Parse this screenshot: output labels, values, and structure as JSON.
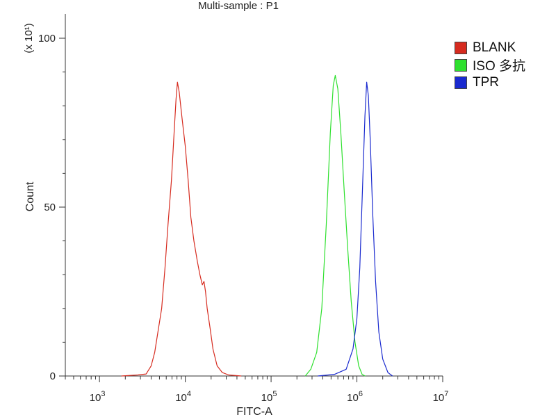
{
  "chart_data": {
    "type": "line",
    "title": "Multi-sample : P1",
    "xlabel": "FITC-A",
    "ylabel": "Count",
    "y_multiplier": "(x 10¹)",
    "x_scale": "log",
    "xlim": [
      400,
      10000000
    ],
    "ylim": [
      0,
      100
    ],
    "x_tick_labels": [
      {
        "value": 1000,
        "base": "10",
        "exp": "3"
      },
      {
        "value": 10000,
        "base": "10",
        "exp": "4"
      },
      {
        "value": 100000,
        "base": "10",
        "exp": "5"
      },
      {
        "value": 1000000,
        "base": "10",
        "exp": "6"
      },
      {
        "value": 10000000,
        "base": "10",
        "exp": "7"
      }
    ],
    "y_ticks": [
      0,
      50,
      100
    ],
    "legend_position": "right",
    "series": [
      {
        "name": "BLANK",
        "color": "#d62b1f",
        "points": [
          [
            1800,
            0
          ],
          [
            2800,
            0.3
          ],
          [
            3500,
            0.6
          ],
          [
            4000,
            3
          ],
          [
            4400,
            7
          ],
          [
            4800,
            13
          ],
          [
            5300,
            20
          ],
          [
            5800,
            32
          ],
          [
            6300,
            45
          ],
          [
            6900,
            58
          ],
          [
            7400,
            72
          ],
          [
            7800,
            82
          ],
          [
            8100,
            87
          ],
          [
            8500,
            84
          ],
          [
            9200,
            76
          ],
          [
            10000,
            68
          ],
          [
            10800,
            58
          ],
          [
            11600,
            47
          ],
          [
            12600,
            40
          ],
          [
            13800,
            34
          ],
          [
            14800,
            30
          ],
          [
            15800,
            27
          ],
          [
            16500,
            28
          ],
          [
            17200,
            25
          ],
          [
            18000,
            20
          ],
          [
            19500,
            14
          ],
          [
            21000,
            8
          ],
          [
            23500,
            3
          ],
          [
            27000,
            1
          ],
          [
            32000,
            0.3
          ],
          [
            45000,
            0
          ]
        ]
      },
      {
        "name": "ISO 多抗",
        "color": "#2ee02e",
        "points": [
          [
            250000,
            0
          ],
          [
            290000,
            2
          ],
          [
            340000,
            7
          ],
          [
            390000,
            20
          ],
          [
            440000,
            45
          ],
          [
            490000,
            72
          ],
          [
            530000,
            86
          ],
          [
            560000,
            89
          ],
          [
            600000,
            85
          ],
          [
            650000,
            72
          ],
          [
            710000,
            55
          ],
          [
            780000,
            38
          ],
          [
            860000,
            22
          ],
          [
            950000,
            10
          ],
          [
            1050000,
            3
          ],
          [
            1150000,
            0.5
          ],
          [
            1250000,
            0
          ]
        ]
      },
      {
        "name": "TPR",
        "color": "#1a2acf",
        "points": [
          [
            350000,
            0
          ],
          [
            550000,
            0.5
          ],
          [
            750000,
            2
          ],
          [
            900000,
            8
          ],
          [
            1000000,
            17
          ],
          [
            1080000,
            32
          ],
          [
            1160000,
            55
          ],
          [
            1240000,
            77
          ],
          [
            1300000,
            87
          ],
          [
            1360000,
            83
          ],
          [
            1430000,
            70
          ],
          [
            1530000,
            48
          ],
          [
            1650000,
            28
          ],
          [
            1800000,
            13
          ],
          [
            2000000,
            5
          ],
          [
            2300000,
            1
          ],
          [
            2600000,
            0
          ]
        ]
      }
    ]
  }
}
